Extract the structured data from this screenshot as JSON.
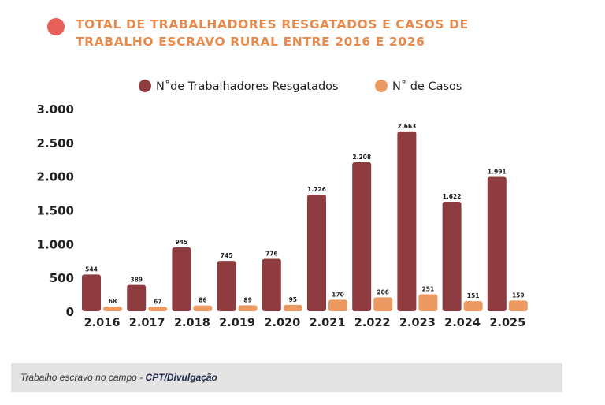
{
  "title": {
    "line1": "TOTAL DE TRABALHADORES RESGATADOS E CASOS DE",
    "line2": "TRABALHO ESCRAVO RURAL ENTRE 2016 E 2026"
  },
  "caption": {
    "text": "Trabalho escravo no campo - ",
    "credit": "CPT/Divulgação"
  },
  "colors": {
    "series1": "#8e3c40",
    "series2": "#ec9a62",
    "title": "#e98a4d",
    "bullet": "#e8605a",
    "caption_bg": "#e4e4e4"
  },
  "chart_data": {
    "type": "bar",
    "categories": [
      "2.016",
      "2.017",
      "2.018",
      "2.019",
      "2.020",
      "2.021",
      "2.022",
      "2.023",
      "2.024",
      "2.025"
    ],
    "series": [
      {
        "name": "N˚de Trabalhadores Resgatados",
        "values": [
          544,
          389,
          945,
          745,
          776,
          1726,
          2208,
          2663,
          1622,
          1991
        ],
        "labels": [
          "544",
          "389",
          "945",
          "745",
          "776",
          "1.726",
          "2.208",
          "2.663",
          "1.622",
          "1.991"
        ]
      },
      {
        "name": "N˚ de Casos",
        "values": [
          68,
          67,
          86,
          89,
          95,
          170,
          206,
          251,
          151,
          159
        ],
        "labels": [
          "68",
          "67",
          "86",
          "89",
          "95",
          "170",
          "206",
          "251",
          "151",
          "159"
        ]
      }
    ],
    "ylim": [
      0,
      3000
    ],
    "yticks": [
      0,
      500,
      1000,
      1500,
      2000,
      2500,
      3000
    ],
    "ytick_labels": [
      "0",
      "500",
      "1.000",
      "1.500",
      "2.000",
      "2.500",
      "3.000"
    ],
    "grid": false,
    "legend": "top-center"
  }
}
